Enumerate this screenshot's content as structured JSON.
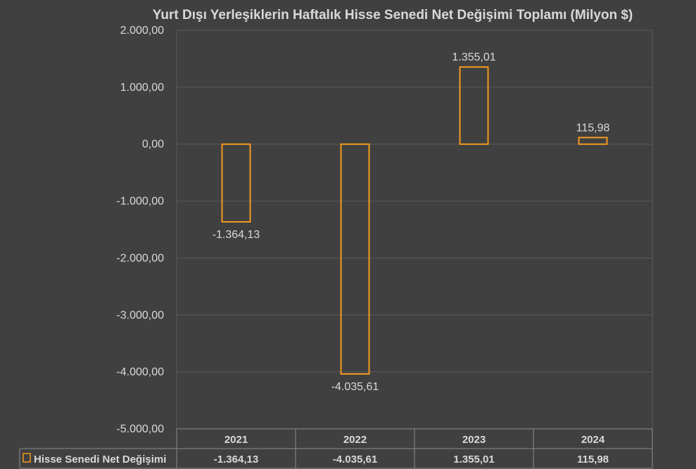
{
  "chart_data": {
    "type": "bar",
    "title": "Yurt Dışı Yerleşiklerin Haftalık Hisse Senedi Net Değişimi Toplamı (Milyon $)",
    "categories": [
      "2021",
      "2022",
      "2023",
      "2024"
    ],
    "series": [
      {
        "name": "Hisse Senedi Net Değişimi",
        "values": [
          -1364.13,
          -4035.61,
          1355.01,
          115.98
        ],
        "labels": [
          "-1.364,13",
          "-4.035,61",
          "1.355,01",
          "115,98"
        ],
        "color": "#f39a1e"
      }
    ],
    "ylim": [
      -5000,
      2000
    ],
    "yticks": [
      {
        "value": 2000,
        "label": "2.000,00"
      },
      {
        "value": 1000,
        "label": "1.000,00"
      },
      {
        "value": 0,
        "label": "0,00"
      },
      {
        "value": -1000,
        "label": "-1.000,00"
      },
      {
        "value": -2000,
        "label": "-2.000,00"
      },
      {
        "value": -3000,
        "label": "-3.000,00"
      },
      {
        "value": -4000,
        "label": "-4.000,00"
      },
      {
        "value": -5000,
        "label": "-5.000,00"
      }
    ],
    "grid": true,
    "data_table": true,
    "legend": "data-table-left",
    "colors": {
      "background": "#404040",
      "gridline": "#5a5a5a",
      "text": "#d9d9d9",
      "bar_outline": "#f39a1e"
    }
  }
}
